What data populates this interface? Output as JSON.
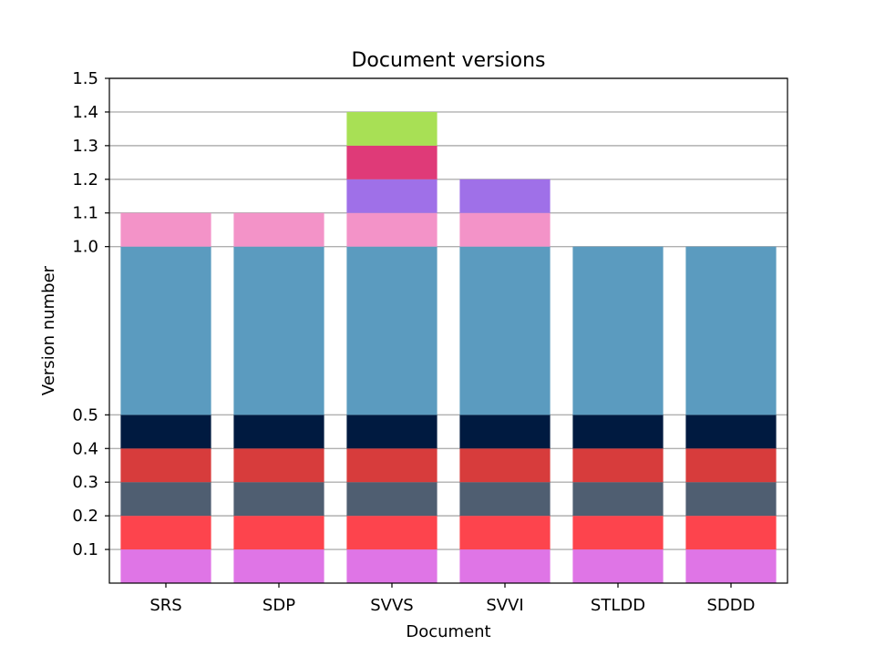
{
  "chart_data": {
    "type": "bar",
    "stacked": true,
    "title": "Document versions",
    "xlabel": "Document",
    "ylabel": "Version number",
    "categories": [
      "SRS",
      "SDP",
      "SVVS",
      "SVVI",
      "STLDD",
      "SDDD"
    ],
    "yticks": [
      "0.1",
      "0.2",
      "0.3",
      "0.4",
      "0.5",
      "1.0",
      "1.1",
      "1.2",
      "1.3",
      "1.4",
      "1.5"
    ],
    "ylim": [
      0,
      1.5
    ],
    "grid": "horizontal",
    "bars": [
      {
        "category": "SRS",
        "segments": [
          {
            "from": 0.0,
            "to": 0.1,
            "color": "#df75e6"
          },
          {
            "from": 0.1,
            "to": 0.2,
            "color": "#fd444d"
          },
          {
            "from": 0.2,
            "to": 0.3,
            "color": "#4f5e71"
          },
          {
            "from": 0.3,
            "to": 0.4,
            "color": "#d73c3c"
          },
          {
            "from": 0.4,
            "to": 0.5,
            "color": "#001a40"
          },
          {
            "from": 0.5,
            "to": 1.0,
            "color": "#5b9bbf"
          },
          {
            "from": 1.0,
            "to": 1.1,
            "color": "#f393c8"
          }
        ]
      },
      {
        "category": "SDP",
        "segments": [
          {
            "from": 0.0,
            "to": 0.1,
            "color": "#df75e6"
          },
          {
            "from": 0.1,
            "to": 0.2,
            "color": "#fd444d"
          },
          {
            "from": 0.2,
            "to": 0.3,
            "color": "#4f5e71"
          },
          {
            "from": 0.3,
            "to": 0.4,
            "color": "#d73c3c"
          },
          {
            "from": 0.4,
            "to": 0.5,
            "color": "#001a40"
          },
          {
            "from": 0.5,
            "to": 1.0,
            "color": "#5b9bbf"
          },
          {
            "from": 1.0,
            "to": 1.1,
            "color": "#f393c8"
          }
        ]
      },
      {
        "category": "SVVS",
        "segments": [
          {
            "from": 0.0,
            "to": 0.1,
            "color": "#df75e6"
          },
          {
            "from": 0.1,
            "to": 0.2,
            "color": "#fd444d"
          },
          {
            "from": 0.2,
            "to": 0.3,
            "color": "#4f5e71"
          },
          {
            "from": 0.3,
            "to": 0.4,
            "color": "#d73c3c"
          },
          {
            "from": 0.4,
            "to": 0.5,
            "color": "#001a40"
          },
          {
            "from": 0.5,
            "to": 1.0,
            "color": "#5b9bbf"
          },
          {
            "from": 1.0,
            "to": 1.1,
            "color": "#f393c8"
          },
          {
            "from": 1.1,
            "to": 1.2,
            "color": "#9f70e8"
          },
          {
            "from": 1.2,
            "to": 1.3,
            "color": "#df3a78"
          },
          {
            "from": 1.3,
            "to": 1.4,
            "color": "#a8e055"
          }
        ]
      },
      {
        "category": "SVVI",
        "segments": [
          {
            "from": 0.0,
            "to": 0.1,
            "color": "#df75e6"
          },
          {
            "from": 0.1,
            "to": 0.2,
            "color": "#fd444d"
          },
          {
            "from": 0.2,
            "to": 0.3,
            "color": "#4f5e71"
          },
          {
            "from": 0.3,
            "to": 0.4,
            "color": "#d73c3c"
          },
          {
            "from": 0.4,
            "to": 0.5,
            "color": "#001a40"
          },
          {
            "from": 0.5,
            "to": 1.0,
            "color": "#5b9bbf"
          },
          {
            "from": 1.0,
            "to": 1.1,
            "color": "#f393c8"
          },
          {
            "from": 1.1,
            "to": 1.2,
            "color": "#9f70e8"
          }
        ]
      },
      {
        "category": "STLDD",
        "segments": [
          {
            "from": 0.0,
            "to": 0.1,
            "color": "#df75e6"
          },
          {
            "from": 0.1,
            "to": 0.2,
            "color": "#fd444d"
          },
          {
            "from": 0.2,
            "to": 0.3,
            "color": "#4f5e71"
          },
          {
            "from": 0.3,
            "to": 0.4,
            "color": "#d73c3c"
          },
          {
            "from": 0.4,
            "to": 0.5,
            "color": "#001a40"
          },
          {
            "from": 0.5,
            "to": 1.0,
            "color": "#5b9bbf"
          }
        ]
      },
      {
        "category": "SDDD",
        "segments": [
          {
            "from": 0.0,
            "to": 0.1,
            "color": "#df75e6"
          },
          {
            "from": 0.1,
            "to": 0.2,
            "color": "#fd444d"
          },
          {
            "from": 0.2,
            "to": 0.3,
            "color": "#4f5e71"
          },
          {
            "from": 0.3,
            "to": 0.4,
            "color": "#d73c3c"
          },
          {
            "from": 0.4,
            "to": 0.5,
            "color": "#001a40"
          },
          {
            "from": 0.5,
            "to": 1.0,
            "color": "#5b9bbf"
          }
        ]
      }
    ]
  }
}
